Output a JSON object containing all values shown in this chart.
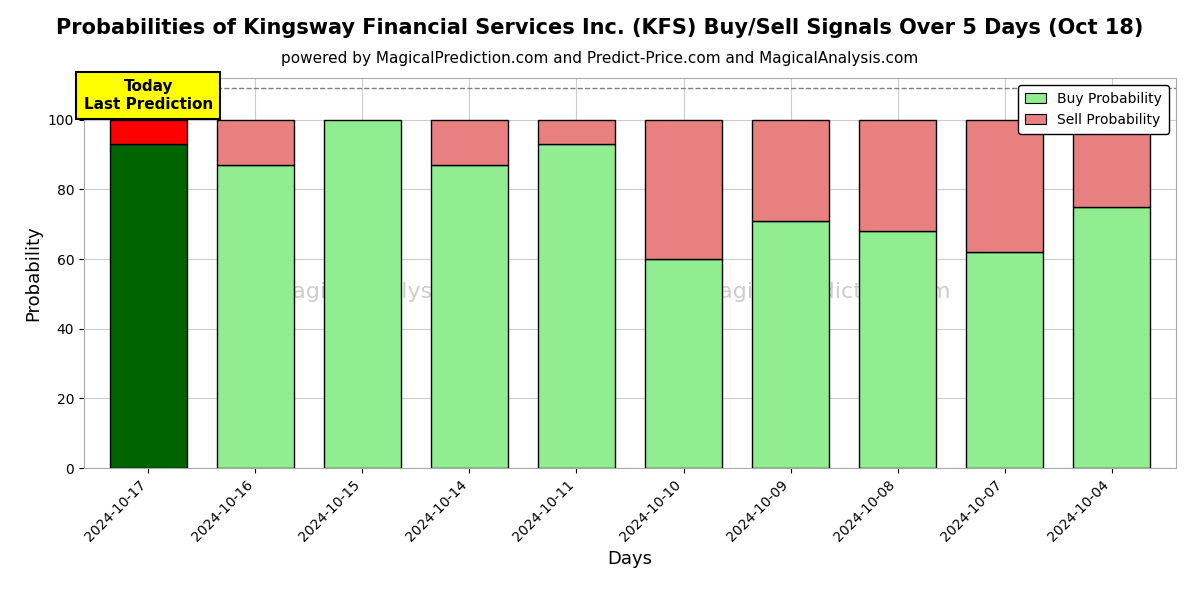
{
  "title": "Probabilities of Kingsway Financial Services Inc. (KFS) Buy/Sell Signals Over 5 Days (Oct 18)",
  "subtitle": "powered by MagicalPrediction.com and Predict-Price.com and MagicalAnalysis.com",
  "xlabel": "Days",
  "ylabel": "Probability",
  "days": [
    "2024-10-17",
    "2024-10-16",
    "2024-10-15",
    "2024-10-14",
    "2024-10-11",
    "2024-10-10",
    "2024-10-09",
    "2024-10-08",
    "2024-10-07",
    "2024-10-04"
  ],
  "buy_probs": [
    93,
    87,
    100,
    87,
    93,
    60,
    71,
    68,
    62,
    75
  ],
  "sell_probs": [
    7,
    13,
    0,
    13,
    7,
    40,
    29,
    32,
    38,
    25
  ],
  "today_bar_index": 0,
  "today_buy_color": "#006400",
  "today_sell_color": "#FF0000",
  "normal_buy_color": "#90EE90",
  "normal_sell_color": "#E88080",
  "today_annotation_bg": "#FFFF00",
  "today_annotation_text": "Today\nLast Prediction",
  "bar_edgecolor": "#000000",
  "bar_linewidth": 1.0,
  "ylim": [
    0,
    112
  ],
  "yticks": [
    0,
    20,
    40,
    60,
    80,
    100
  ],
  "dashed_line_y": 109,
  "legend_buy_label": "Buy Probability",
  "legend_sell_label": "Sell Probability",
  "background_color": "#ffffff",
  "grid_color": "#cccccc",
  "title_fontsize": 15,
  "subtitle_fontsize": 11,
  "axis_label_fontsize": 13,
  "tick_fontsize": 10,
  "watermark_color": "#c8c8c8"
}
